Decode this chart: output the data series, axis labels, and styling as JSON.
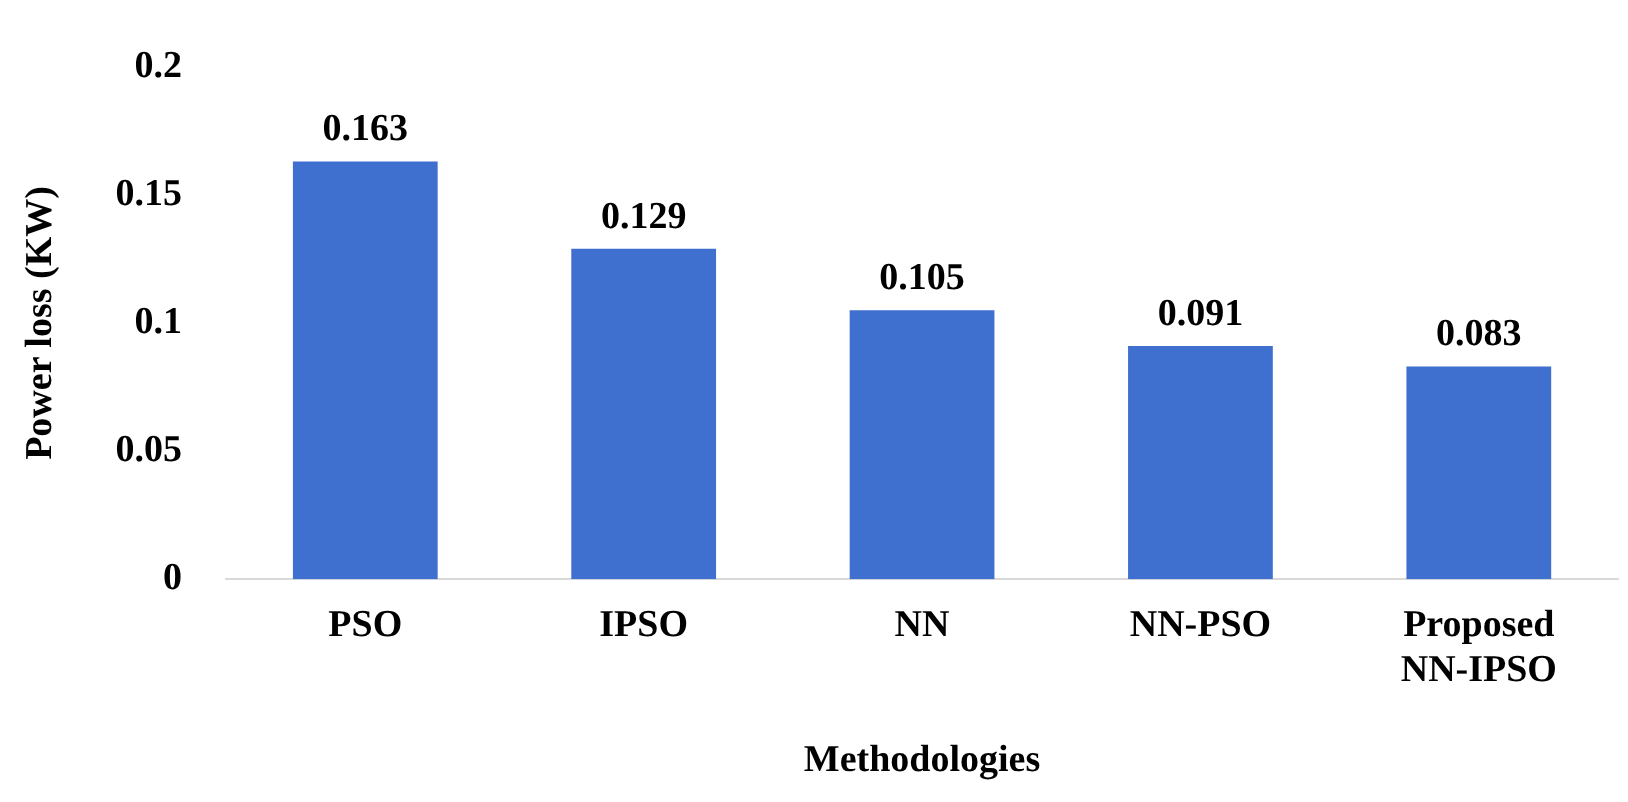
{
  "chart_data": {
    "type": "bar",
    "xlabel": "Methodologies",
    "ylabel": "Power loss (KW)",
    "categories": [
      "PSO",
      "IPSO",
      "NN",
      "NN-PSO",
      "Proposed NN-IPSO"
    ],
    "values": [
      0.163,
      0.129,
      0.105,
      0.091,
      0.083
    ],
    "color": "#3f6fcf",
    "ylim": [
      0,
      0.2
    ],
    "yticks": [
      0,
      0.05,
      0.1,
      0.15,
      0.2
    ],
    "grid": false,
    "legend": false,
    "data_labels": true
  }
}
